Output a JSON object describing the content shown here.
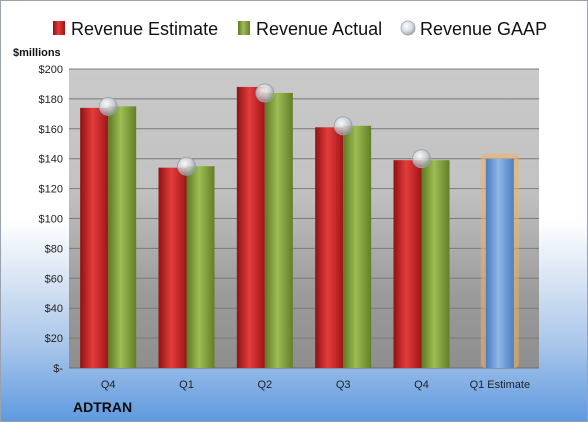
{
  "company": "ADTRAN",
  "colors": {
    "estimate": "#d02a2a",
    "actual": "#86a63c",
    "gaap": "#c8ccd4",
    "forecast": "#6f9fd8",
    "forecast_glow": "#f5b060"
  },
  "chart_data": {
    "type": "bar",
    "title": "",
    "ylabel": "$millions",
    "xlabel": "",
    "ylim": [
      0,
      200
    ],
    "yticks": [
      0,
      20,
      40,
      60,
      80,
      100,
      120,
      140,
      160,
      180,
      200
    ],
    "ytick_labels": [
      "$-",
      "$20",
      "$40",
      "$60",
      "$80",
      "$100",
      "$120",
      "$140",
      "$160",
      "$180",
      "$200"
    ],
    "categories": [
      "Q4",
      "Q1",
      "Q2",
      "Q3",
      "Q4",
      "Q1 Estimate"
    ],
    "legend_position": "top",
    "grid": true,
    "series": [
      {
        "name": "Revenue Estimate",
        "values": [
          174,
          134,
          188,
          161,
          139,
          null
        ]
      },
      {
        "name": "Revenue Actual",
        "values": [
          175,
          135,
          184,
          162,
          139,
          null
        ]
      },
      {
        "name": "Revenue GAAP",
        "values": [
          175,
          135,
          184,
          162,
          140,
          null
        ]
      }
    ],
    "forecast": {
      "category": "Q1 Estimate",
      "value": 140
    }
  }
}
